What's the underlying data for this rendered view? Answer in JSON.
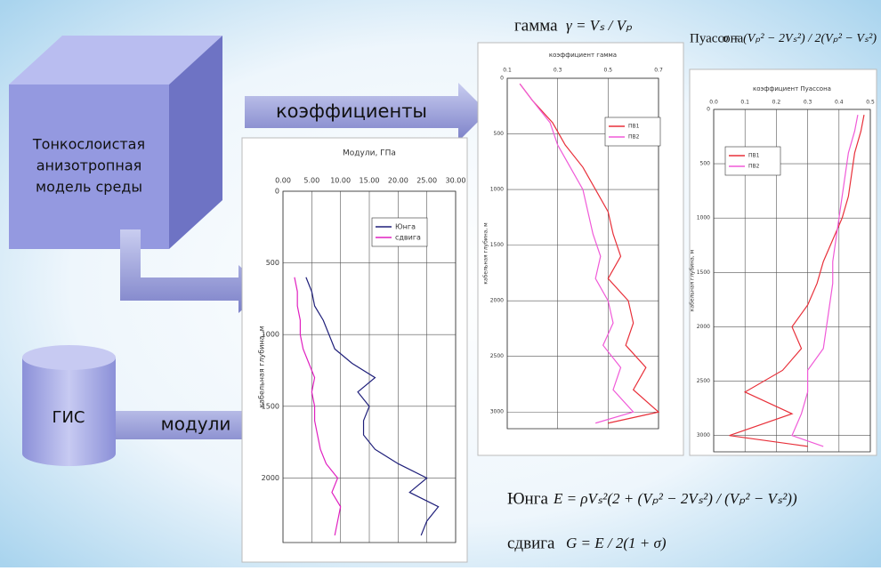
{
  "diagram": {
    "model": [
      "Тонкослоистая",
      "анизотропная",
      "модель среды"
    ],
    "gis": "ГИС",
    "arrow_coefficients": "коэффициенты",
    "arrow_moduli": "модули",
    "formulas": {
      "gamma_label": "гамма",
      "gamma": "γ = Vₛ / Vₚ",
      "poisson_label": "Пуассона",
      "poisson": "σ = (Vₚ² − 2Vₛ²) / 2(Vₚ² − Vₛ²)",
      "young_label": "Юнга",
      "young": "E = ρVₛ²(2 + (Vₚ² − 2Vₛ²) / (Vₚ² − Vₛ²))",
      "shear_label": "сдвига",
      "shear": "G = E / 2(1 + σ)"
    }
  },
  "chart_data": [
    {
      "type": "line",
      "title": "Модули, ГПа",
      "y_label": "кабельная глубина, м",
      "xlim": [
        0,
        30
      ],
      "xticks": [
        {
          "value": 0,
          "label": "0.00"
        },
        {
          "value": 5,
          "label": "5.00"
        },
        {
          "value": 10,
          "label": "10.00"
        },
        {
          "value": 15,
          "label": "15.00"
        },
        {
          "value": 20,
          "label": "20.00"
        },
        {
          "value": 25,
          "label": "25.00"
        },
        {
          "value": 30,
          "label": "30.00"
        }
      ],
      "ylim": [
        0,
        2450
      ],
      "yticks": [
        0,
        500,
        1000,
        1500,
        2000
      ],
      "grid": true,
      "depth": [
        600,
        700,
        800,
        900,
        1000,
        1100,
        1200,
        1300,
        1400,
        1500,
        1600,
        1700,
        1800,
        1900,
        2000,
        2100,
        2200,
        2300,
        2400
      ],
      "series": [
        {
          "name": "Юнга",
          "color": "#1f1f7a",
          "values": [
            4,
            5,
            5.5,
            7,
            8,
            9,
            12,
            16,
            13,
            15,
            14,
            14,
            16,
            20,
            25,
            22,
            27,
            25,
            24
          ]
        },
        {
          "name": "сдвига",
          "color": "#e020c0",
          "values": [
            2,
            2.5,
            2.5,
            3,
            3,
            3.5,
            4.5,
            5.5,
            5,
            5.5,
            5.5,
            6,
            6.5,
            7.5,
            9.5,
            8.5,
            10,
            9.5,
            9
          ]
        }
      ]
    },
    {
      "type": "line",
      "title": "коэффициент гамма",
      "y_label": "кабельная глубина, м",
      "xlim": [
        0.1,
        0.7
      ],
      "xticks": [
        0.1,
        0.3,
        0.5,
        0.7
      ],
      "ylim": [
        0,
        3150
      ],
      "yticks": [
        0,
        500,
        1000,
        1500,
        2000,
        2500,
        3000
      ],
      "grid": true,
      "depth": [
        50,
        200,
        400,
        600,
        800,
        1000,
        1200,
        1400,
        1600,
        1800,
        2000,
        2200,
        2400,
        2600,
        2800,
        3000,
        3100
      ],
      "series": [
        {
          "name": "ПВ1",
          "color": "#e8303a",
          "values": [
            0.15,
            0.2,
            0.28,
            0.33,
            0.4,
            0.45,
            0.5,
            0.52,
            0.55,
            0.5,
            0.58,
            0.6,
            0.57,
            0.65,
            0.6,
            0.7,
            0.5
          ]
        },
        {
          "name": "ПВ2",
          "color": "#f05ad8",
          "values": [
            0.15,
            0.2,
            0.27,
            0.3,
            0.35,
            0.4,
            0.42,
            0.44,
            0.47,
            0.45,
            0.5,
            0.52,
            0.48,
            0.55,
            0.52,
            0.6,
            0.45
          ]
        }
      ]
    },
    {
      "type": "line",
      "title": "коэффициент Пуассона",
      "y_label": "кабельная глубина, м",
      "xlim": [
        0,
        0.5
      ],
      "xticks": [
        {
          "value": 0,
          "label": "0.0"
        },
        0.1,
        0.2,
        0.3,
        0.4,
        0.5
      ],
      "ylim": [
        0,
        3150
      ],
      "yticks": [
        0,
        500,
        1000,
        1500,
        2000,
        2500,
        3000
      ],
      "grid": true,
      "depth": [
        50,
        200,
        400,
        600,
        800,
        1000,
        1200,
        1400,
        1600,
        1800,
        2000,
        2200,
        2400,
        2600,
        2800,
        3000,
        3100
      ],
      "series": [
        {
          "name": "ПВ1",
          "color": "#e8303a",
          "values": [
            0.48,
            0.47,
            0.45,
            0.44,
            0.43,
            0.41,
            0.38,
            0.35,
            0.33,
            0.3,
            0.25,
            0.28,
            0.22,
            0.1,
            0.25,
            0.05,
            0.3
          ]
        },
        {
          "name": "ПВ2",
          "color": "#f05ad8",
          "values": [
            0.46,
            0.45,
            0.43,
            0.42,
            0.41,
            0.4,
            0.39,
            0.38,
            0.38,
            0.37,
            0.36,
            0.35,
            0.3,
            0.3,
            0.28,
            0.25,
            0.35
          ]
        }
      ]
    }
  ]
}
